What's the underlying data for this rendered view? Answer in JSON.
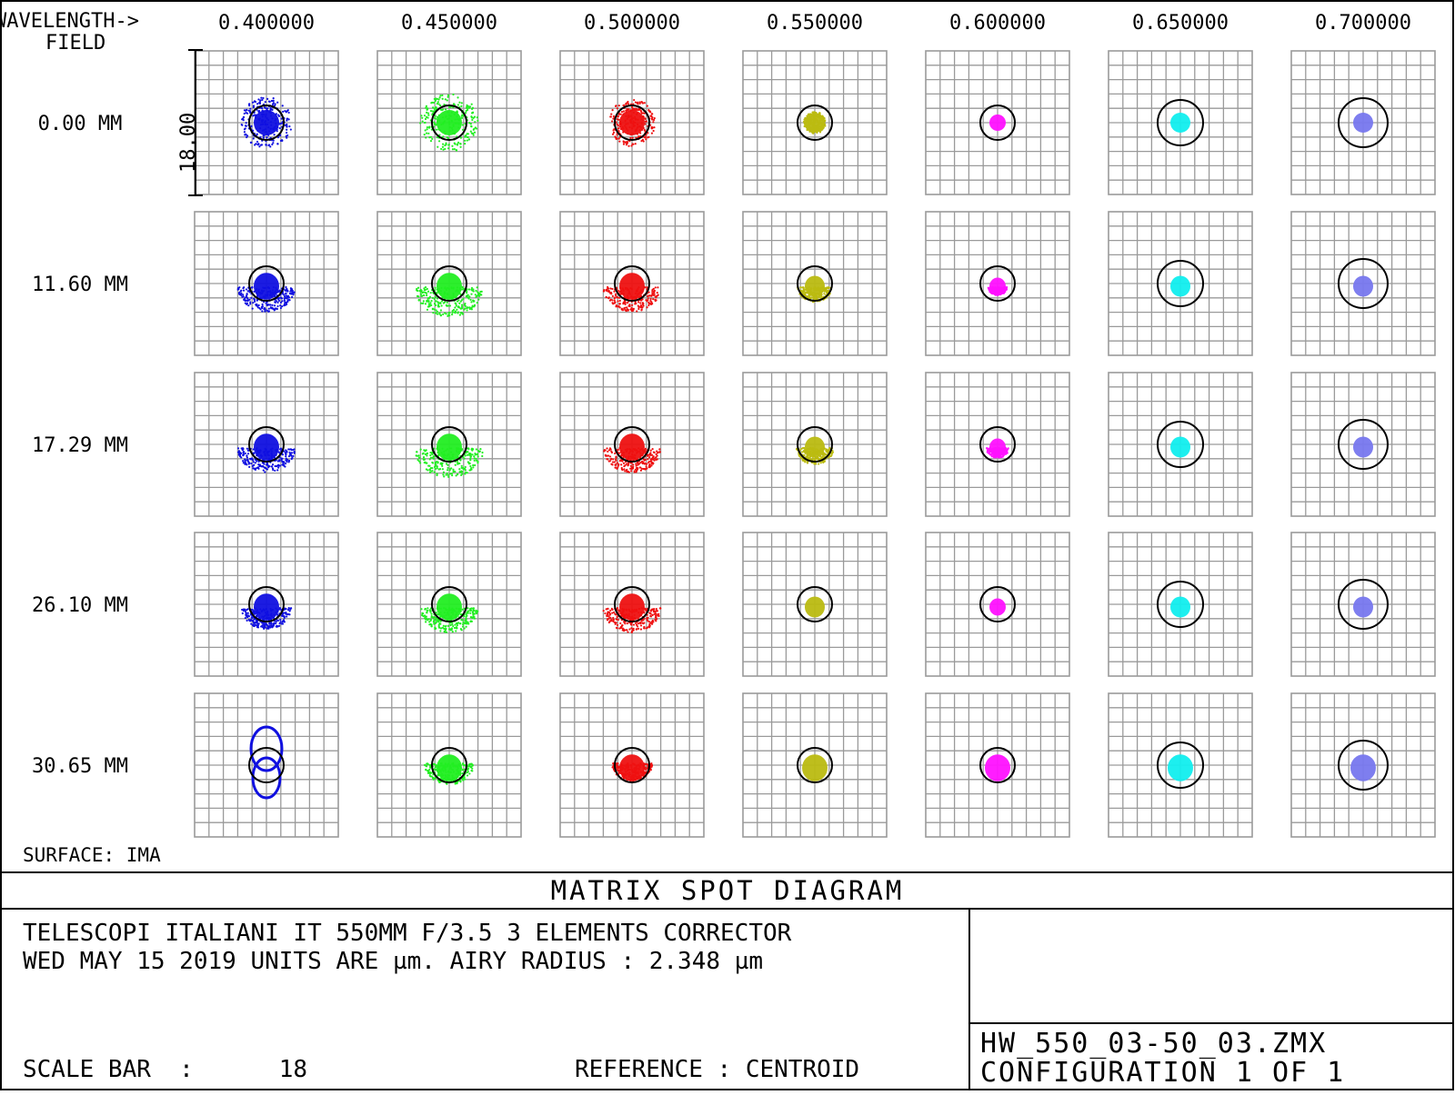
{
  "header": {
    "wavelength_label": "WAVELENGTH->",
    "field_label": "FIELD"
  },
  "wavelengths": [
    "0.400000",
    "0.450000",
    "0.500000",
    "0.550000",
    "0.600000",
    "0.650000",
    "0.700000"
  ],
  "fields": [
    "0.00 MM",
    "11.60 MM",
    "17.29 MM",
    "26.10 MM",
    "30.65 MM"
  ],
  "colors": {
    "wavelength_colors": [
      "#1010e0",
      "#22ee22",
      "#ee1111",
      "#bbbb11",
      "#ff11ff",
      "#11eeee",
      "#7777ee"
    ],
    "grid": "#9a9a9a",
    "airy_circle": "#000000"
  },
  "scale_bar_label": "18.00",
  "surface_label": "SURFACE: IMA",
  "title": "MATRIX SPOT DIAGRAM",
  "info": {
    "line1": "TELESCOPI ITALIANI IT 550MM F/3.5  3 ELEMENTS CORRECTOR",
    "line2": "WED MAY 15 2019  UNITS ARE µm.  AIRY RADIUS : 2.348 µm",
    "scale_bar": "SCALE BAR  :      18",
    "reference": "REFERENCE  : CENTROID"
  },
  "file": {
    "name": "HW_550_03-50_03.ZMX",
    "configuration": "CONFIGURATION 1 OF 1"
  }
}
